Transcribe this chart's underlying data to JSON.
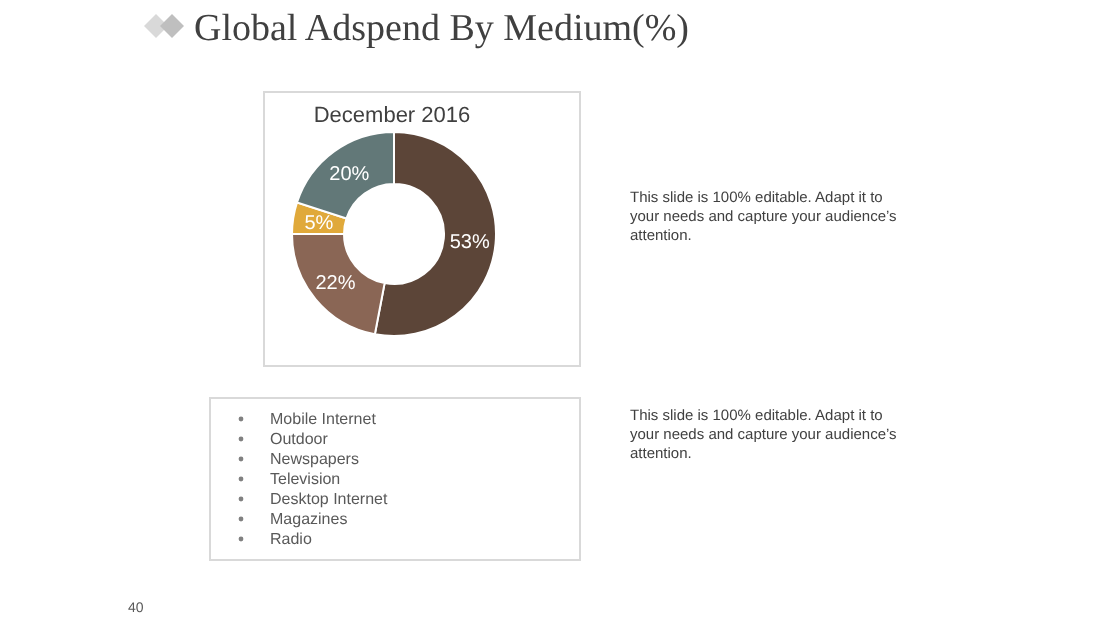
{
  "chart_data": {
    "type": "donut",
    "title": "Global Adspend By Medium(%)",
    "subtitle": "December 2016",
    "categories": [
      null,
      null,
      null,
      null
    ],
    "values": [
      53,
      22,
      5,
      20
    ],
    "colors": [
      "#5c4538",
      "#8a6655",
      "#e0a93a",
      "#627878"
    ],
    "value_labels": [
      "53%",
      "22%",
      "5%",
      "20%"
    ],
    "annotations": [
      "Mobile Internet",
      "Outdoor",
      "Newspapers",
      "Television",
      "Desktop Internet",
      "Magazines",
      "Radio",
      "This slide is 100% editable. Adapt it to your needs and capture your audience’s attention.",
      "This slide is 100% editable. Adapt it to your needs and capture your audience’s attention.",
      "40"
    ]
  }
}
